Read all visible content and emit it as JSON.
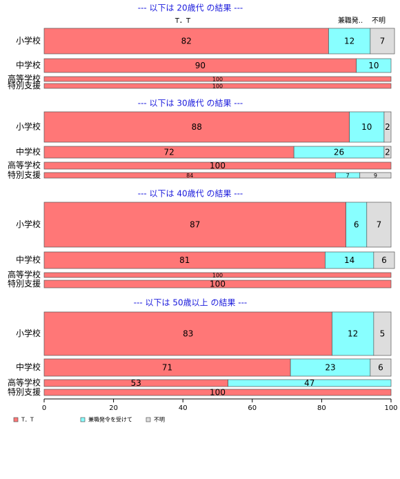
{
  "chart_data": {
    "type": "bar",
    "orientation": "horizontal-stacked-percent",
    "xlim": [
      0,
      100
    ],
    "xticks": [
      "0",
      "20",
      "40",
      "60",
      "80",
      "100"
    ],
    "series": [
      {
        "name": "T．T",
        "color": "#ff7777"
      },
      {
        "name": "兼職発令を受けて",
        "color": "#88ffff"
      },
      {
        "name": "不明",
        "color": "#dddddd"
      }
    ],
    "column_headers": [
      "T．T",
      "兼職発..",
      "不明"
    ],
    "panels": [
      {
        "title": "--- 以下は 20歳代 の結果 ---",
        "rows": [
          {
            "category": "小学校",
            "values": [
              82,
              12,
              7
            ]
          },
          {
            "category": "中学校",
            "values": [
              90,
              10,
              0
            ]
          },
          {
            "category": "高等学校",
            "values": [
              100,
              0,
              0
            ]
          },
          {
            "category": "特別支援",
            "values": [
              100,
              0,
              0
            ]
          }
        ]
      },
      {
        "title": "--- 以下は 30歳代 の結果 ---",
        "rows": [
          {
            "category": "小学校",
            "values": [
              88,
              10,
              2
            ]
          },
          {
            "category": "中学校",
            "values": [
              72,
              26,
              2
            ]
          },
          {
            "category": "高等学校",
            "values": [
              100,
              0,
              0
            ]
          },
          {
            "category": "特別支援",
            "values": [
              84,
              7,
              9
            ]
          }
        ]
      },
      {
        "title": "--- 以下は 40歳代 の結果 ---",
        "rows": [
          {
            "category": "小学校",
            "values": [
              87,
              6,
              7
            ]
          },
          {
            "category": "中学校",
            "values": [
              81,
              14,
              6
            ]
          },
          {
            "category": "高等学校",
            "values": [
              100,
              0,
              0
            ]
          },
          {
            "category": "特別支援",
            "values": [
              100,
              0,
              0
            ]
          }
        ]
      },
      {
        "title": "--- 以下は 50歳以上 の結果 ---",
        "rows": [
          {
            "category": "小学校",
            "values": [
              83,
              12,
              5
            ]
          },
          {
            "category": "中学校",
            "values": [
              71,
              23,
              6
            ]
          },
          {
            "category": "高等学校",
            "values": [
              53,
              47,
              0
            ]
          },
          {
            "category": "特別支援",
            "values": [
              100,
              0,
              0
            ]
          }
        ]
      }
    ]
  }
}
